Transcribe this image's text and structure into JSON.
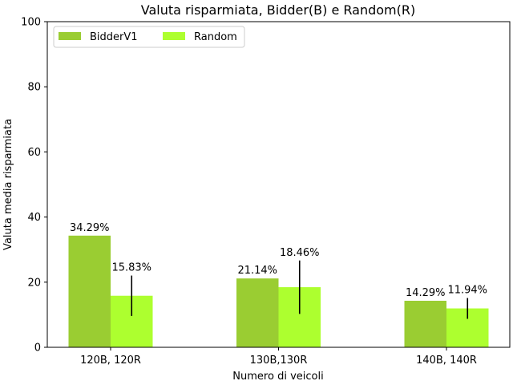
{
  "chart_data": {
    "type": "bar",
    "title": "Valuta risparmiata, Bidder(B) e Random(R)",
    "xlabel": "Numero di veicoli",
    "ylabel": "Valuta media risparmiata",
    "categories": [
      "120B, 120R",
      "130B,130R",
      "140B, 140R"
    ],
    "ylim": [
      0,
      100
    ],
    "yticks": [
      0,
      20,
      40,
      60,
      80,
      100
    ],
    "grid": false,
    "legend_position": "top-left",
    "series": [
      {
        "name": "BidderV1",
        "color": "#9acd32",
        "values": [
          34.29,
          21.14,
          14.29
        ],
        "labels": [
          "34.29%",
          "21.14%",
          "14.29%"
        ],
        "error": null
      },
      {
        "name": "Random",
        "color": "#adff2f",
        "values": [
          15.83,
          18.46,
          11.94
        ],
        "labels": [
          "15.83%",
          "18.46%",
          "11.94%"
        ],
        "error": [
          6.2,
          8.2,
          3.2
        ]
      }
    ]
  }
}
